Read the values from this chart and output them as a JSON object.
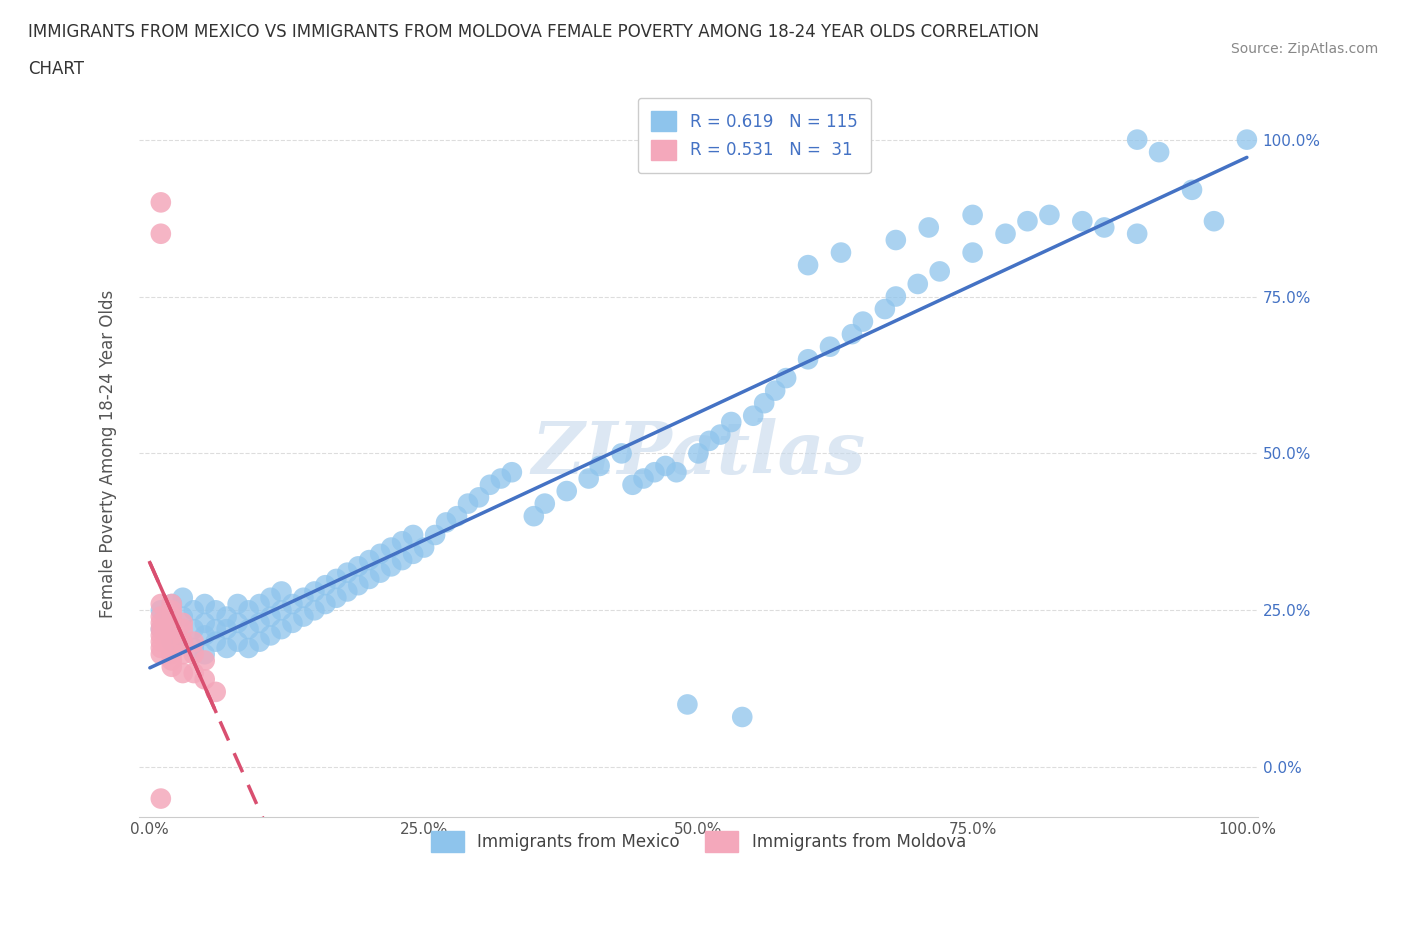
{
  "title_line1": "IMMIGRANTS FROM MEXICO VS IMMIGRANTS FROM MOLDOVA FEMALE POVERTY AMONG 18-24 YEAR OLDS CORRELATION",
  "title_line2": "CHART",
  "source": "Source: ZipAtlas.com",
  "ylabel": "Female Poverty Among 18-24 Year Olds",
  "ytick_labels": [
    "0.0%",
    "25.0%",
    "50.0%",
    "75.0%",
    "100.0%"
  ],
  "xtick_labels": [
    "0.0%",
    "25.0%",
    "50.0%",
    "75.0%",
    "100.0%"
  ],
  "mexico_color": "#8EC4EC",
  "moldova_color": "#F4A8BB",
  "mexico_R": 0.619,
  "mexico_N": 115,
  "moldova_R": 0.531,
  "moldova_N": 31,
  "regression_line_color_mexico": "#4472C4",
  "regression_line_color_moldova": "#D94F70",
  "watermark": "ZIPatlas",
  "legend_label_mexico": "Immigrants from Mexico",
  "legend_label_moldova": "Immigrants from Moldova",
  "mexico_x": [
    0.01,
    0.01,
    0.02,
    0.02,
    0.02,
    0.03,
    0.03,
    0.03,
    0.04,
    0.04,
    0.04,
    0.05,
    0.05,
    0.05,
    0.05,
    0.06,
    0.06,
    0.06,
    0.07,
    0.07,
    0.07,
    0.08,
    0.08,
    0.08,
    0.09,
    0.09,
    0.09,
    0.1,
    0.1,
    0.1,
    0.11,
    0.11,
    0.11,
    0.12,
    0.12,
    0.12,
    0.13,
    0.13,
    0.14,
    0.14,
    0.15,
    0.15,
    0.16,
    0.16,
    0.17,
    0.17,
    0.18,
    0.18,
    0.19,
    0.19,
    0.2,
    0.2,
    0.21,
    0.21,
    0.22,
    0.22,
    0.23,
    0.23,
    0.24,
    0.24,
    0.25,
    0.26,
    0.27,
    0.28,
    0.29,
    0.3,
    0.31,
    0.32,
    0.33,
    0.35,
    0.36,
    0.38,
    0.4,
    0.41,
    0.43,
    0.44,
    0.45,
    0.46,
    0.47,
    0.48,
    0.49,
    0.5,
    0.51,
    0.52,
    0.53,
    0.54,
    0.55,
    0.56,
    0.57,
    0.58,
    0.6,
    0.62,
    0.64,
    0.65,
    0.67,
    0.68,
    0.7,
    0.72,
    0.75,
    0.78,
    0.8,
    0.82,
    0.85,
    0.87,
    0.9,
    0.6,
    0.63,
    0.68,
    0.71,
    0.75,
    0.9,
    0.92,
    0.95,
    0.97,
    1.0
  ],
  "mexico_y": [
    0.22,
    0.25,
    0.2,
    0.23,
    0.26,
    0.2,
    0.24,
    0.27,
    0.19,
    0.22,
    0.25,
    0.18,
    0.21,
    0.23,
    0.26,
    0.2,
    0.22,
    0.25,
    0.19,
    0.22,
    0.24,
    0.2,
    0.23,
    0.26,
    0.19,
    0.22,
    0.25,
    0.2,
    0.23,
    0.26,
    0.21,
    0.24,
    0.27,
    0.22,
    0.25,
    0.28,
    0.23,
    0.26,
    0.24,
    0.27,
    0.25,
    0.28,
    0.26,
    0.29,
    0.27,
    0.3,
    0.28,
    0.31,
    0.29,
    0.32,
    0.3,
    0.33,
    0.31,
    0.34,
    0.32,
    0.35,
    0.33,
    0.36,
    0.34,
    0.37,
    0.35,
    0.37,
    0.39,
    0.4,
    0.42,
    0.43,
    0.45,
    0.46,
    0.47,
    0.4,
    0.42,
    0.44,
    0.46,
    0.48,
    0.5,
    0.45,
    0.46,
    0.47,
    0.48,
    0.47,
    0.1,
    0.5,
    0.52,
    0.53,
    0.55,
    0.08,
    0.56,
    0.58,
    0.6,
    0.62,
    0.65,
    0.67,
    0.69,
    0.71,
    0.73,
    0.75,
    0.77,
    0.79,
    0.82,
    0.85,
    0.87,
    0.88,
    0.87,
    0.86,
    0.85,
    0.8,
    0.82,
    0.84,
    0.86,
    0.88,
    1.0,
    0.98,
    0.92,
    0.87,
    1.0
  ],
  "moldova_x": [
    0.01,
    0.01,
    0.01,
    0.01,
    0.01,
    0.01,
    0.01,
    0.01,
    0.01,
    0.01,
    0.01,
    0.02,
    0.02,
    0.02,
    0.02,
    0.02,
    0.02,
    0.02,
    0.02,
    0.02,
    0.03,
    0.03,
    0.03,
    0.03,
    0.03,
    0.04,
    0.04,
    0.04,
    0.05,
    0.05,
    0.06
  ],
  "moldova_y": [
    0.9,
    0.85,
    0.26,
    0.24,
    0.23,
    0.22,
    0.21,
    0.2,
    0.19,
    0.18,
    -0.05,
    0.26,
    0.25,
    0.24,
    0.22,
    0.21,
    0.2,
    0.18,
    0.17,
    0.16,
    0.23,
    0.22,
    0.2,
    0.18,
    0.15,
    0.2,
    0.18,
    0.15,
    0.17,
    0.14,
    0.12
  ],
  "xlim": [
    0.0,
    1.0
  ],
  "ylim": [
    -0.07,
    1.07
  ]
}
